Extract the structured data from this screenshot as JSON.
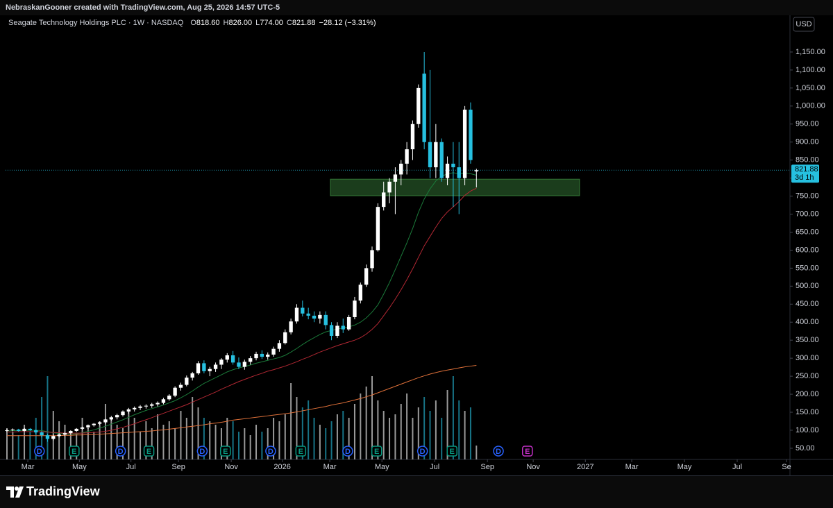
{
  "header": {
    "credit": "NebraskanGooner created with TradingView.com, Aug 25, 2026 14:57 UTC-5"
  },
  "footer": {
    "brand": "TradingView"
  },
  "chart_data": {
    "type": "candlestick",
    "title": "Seagate Technology Holdings PLC · 1W · NASDAQ",
    "ohlc_header": [
      {
        "key": "O",
        "value": "818.60"
      },
      {
        "key": "H",
        "value": "826.00"
      },
      {
        "key": "L",
        "value": "774.00"
      },
      {
        "key": "C",
        "value": "821.88"
      }
    ],
    "change_label": "−28.12 (−3.31%)",
    "currency": "USD",
    "last_price_label": "821.88",
    "countdown": "3d 1h",
    "up_color": "#ffffff",
    "down_color": "#26c0e0",
    "open": [
      98,
      100,
      102,
      98,
      104,
      100,
      94,
      86,
      76,
      84,
      88,
      92,
      98,
      104,
      108,
      114,
      118,
      122,
      130,
      136,
      142,
      152,
      158,
      162,
      166,
      168,
      172,
      176,
      186,
      196,
      218,
      226,
      246,
      258,
      286,
      264,
      270,
      282,
      296,
      308,
      288,
      276,
      290,
      300,
      312,
      304,
      310,
      326,
      342,
      372,
      402,
      440,
      424,
      418,
      410,
      420,
      392,
      362,
      390,
      380,
      414,
      460,
      504,
      550,
      600,
      720,
      760,
      790,
      810,
      840,
      880,
      950,
      1090,
      900,
      830,
      900,
      800,
      840,
      830,
      800,
      990,
      818.6
    ],
    "high": [
      104,
      105,
      104,
      106,
      106,
      102,
      96,
      90,
      88,
      92,
      94,
      100,
      106,
      110,
      116,
      120,
      124,
      132,
      140,
      146,
      155,
      162,
      166,
      170,
      172,
      176,
      180,
      190,
      200,
      222,
      232,
      252,
      262,
      292,
      294,
      276,
      288,
      300,
      314,
      320,
      302,
      296,
      306,
      318,
      322,
      316,
      332,
      350,
      380,
      410,
      450,
      460,
      440,
      430,
      430,
      430,
      400,
      400,
      410,
      420,
      470,
      510,
      560,
      610,
      730,
      790,
      800,
      830,
      850,
      900,
      960,
      1060,
      1150,
      1100,
      950,
      910,
      860,
      900,
      900,
      1000,
      1010,
      826
    ],
    "low": [
      95,
      97,
      96,
      96,
      98,
      90,
      80,
      68,
      72,
      80,
      84,
      88,
      95,
      100,
      104,
      110,
      114,
      118,
      126,
      130,
      138,
      146,
      152,
      156,
      160,
      162,
      166,
      172,
      182,
      192,
      210,
      222,
      238,
      254,
      258,
      250,
      262,
      270,
      288,
      282,
      270,
      268,
      282,
      294,
      298,
      296,
      304,
      318,
      338,
      366,
      396,
      416,
      408,
      400,
      396,
      380,
      350,
      356,
      370,
      376,
      408,
      452,
      498,
      540,
      596,
      710,
      730,
      700,
      780,
      810,
      850,
      940,
      880,
      800,
      800,
      790,
      780,
      720,
      700,
      780,
      840,
      774
    ],
    "close": [
      100,
      102,
      98,
      104,
      100,
      94,
      86,
      76,
      84,
      88,
      92,
      98,
      104,
      108,
      114,
      118,
      122,
      130,
      136,
      142,
      152,
      158,
      162,
      166,
      168,
      172,
      176,
      186,
      196,
      218,
      226,
      246,
      258,
      286,
      264,
      270,
      282,
      296,
      308,
      288,
      276,
      290,
      300,
      312,
      304,
      310,
      326,
      342,
      372,
      402,
      440,
      424,
      418,
      410,
      420,
      392,
      362,
      390,
      380,
      414,
      460,
      504,
      550,
      600,
      720,
      760,
      790,
      810,
      840,
      880,
      950,
      1050,
      900,
      830,
      900,
      800,
      840,
      830,
      800,
      990,
      850,
      821.88
    ],
    "volume": [
      45,
      40,
      35,
      50,
      40,
      60,
      90,
      120,
      70,
      55,
      50,
      40,
      38,
      60,
      45,
      40,
      55,
      80,
      60,
      50,
      45,
      70,
      60,
      40,
      55,
      45,
      65,
      50,
      55,
      45,
      70,
      60,
      90,
      75,
      60,
      55,
      50,
      45,
      60,
      55,
      40,
      45,
      35,
      50,
      40,
      45,
      60,
      55,
      65,
      110,
      90,
      75,
      85,
      60,
      50,
      45,
      55,
      65,
      70,
      60,
      80,
      95,
      105,
      120,
      85,
      70,
      60,
      65,
      80,
      95,
      60,
      75,
      90,
      70,
      85,
      60,
      100,
      120,
      85,
      70,
      75,
      20
    ],
    "moving_averages": [
      {
        "color": "#1b7a3a",
        "values": [
          98,
          99,
          99,
          100,
          100,
          100,
          99,
          96,
          93,
          91,
          90,
          89,
          90,
          93,
          97,
          101,
          106,
          111,
          117,
          123,
          129,
          136,
          143,
          149,
          155,
          160,
          165,
          170,
          176,
          182,
          190,
          199,
          209,
          220,
          230,
          238,
          246,
          254,
          262,
          268,
          273,
          277,
          281,
          286,
          290,
          294,
          298,
          302,
          308,
          317,
          327,
          338,
          348,
          357,
          366,
          373,
          377,
          381,
          384,
          387,
          392,
          400,
          412,
          428,
          448,
          478,
          510,
          546,
          583,
          620,
          660,
          705,
          742,
          770,
          792,
          805,
          812,
          815,
          812,
          815,
          812,
          808
        ]
      },
      {
        "color": "#b22833",
        "values": [
          95,
          95,
          96,
          96,
          96,
          96,
          96,
          95,
          94,
          93,
          92,
          92,
          92,
          92,
          93,
          94,
          95,
          97,
          100,
          104,
          108,
          113,
          118,
          124,
          129,
          135,
          141,
          147,
          153,
          159,
          165,
          171,
          178,
          185,
          192,
          199,
          206,
          214,
          221,
          228,
          235,
          241,
          247,
          253,
          258,
          264,
          268,
          273,
          278,
          284,
          290,
          297,
          303,
          310,
          317,
          323,
          329,
          335,
          340,
          345,
          350,
          357,
          367,
          380,
          396,
          418,
          440,
          464,
          490,
          518,
          548,
          580,
          612,
          638,
          664,
          688,
          706,
          720,
          735,
          752,
          764,
          772
        ]
      },
      {
        "color": "#e0713a",
        "values": [
          85,
          85,
          85,
          85,
          85,
          85,
          85,
          85,
          85,
          85,
          86,
          86,
          87,
          87,
          88,
          88,
          89,
          90,
          91,
          92,
          93,
          94,
          95,
          96,
          97,
          98,
          100,
          101,
          103,
          105,
          107,
          109,
          111,
          113,
          115,
          118,
          120,
          122,
          125,
          128,
          130,
          132,
          134,
          136,
          138,
          140,
          142,
          144,
          146,
          148,
          151,
          154,
          157,
          160,
          163,
          166,
          170,
          173,
          176,
          180,
          184,
          188,
          193,
          198,
          204,
          210,
          216,
          222,
          228,
          234,
          240,
          246,
          251,
          256,
          260,
          264,
          267,
          270,
          273,
          276,
          278,
          280
        ]
      }
    ],
    "zone": {
      "low": 751,
      "high": 797,
      "start": 55.8,
      "end": 98.8,
      "color": "#4caf50"
    },
    "events": [
      {
        "label": "D",
        "at": 5.6,
        "color": "#2962ff"
      },
      {
        "label": "E",
        "at": 11.6,
        "color": "#089981"
      },
      {
        "label": "D",
        "at": 19.6,
        "color": "#2962ff"
      },
      {
        "label": "E",
        "at": 24.5,
        "color": "#089981"
      },
      {
        "label": "D",
        "at": 33.7,
        "color": "#2962ff"
      },
      {
        "label": "E",
        "at": 37.7,
        "color": "#089981"
      },
      {
        "label": "D",
        "at": 45.5,
        "color": "#2962ff"
      },
      {
        "label": "E",
        "at": 50.7,
        "color": "#089981"
      },
      {
        "label": "D",
        "at": 58.8,
        "color": "#2962ff"
      },
      {
        "label": "E",
        "at": 63.8,
        "color": "#089981"
      },
      {
        "label": "D",
        "at": 71.7,
        "color": "#2962ff"
      },
      {
        "label": "E",
        "at": 76.8,
        "color": "#089981"
      },
      {
        "label": "D",
        "at": 84.8,
        "color": "#2962ff"
      },
      {
        "label": "E",
        "at": 89.8,
        "color": "#c530c9"
      }
    ],
    "xlim": [
      -0.24,
      135.1
    ],
    "xticks": [
      {
        "value": 3.6,
        "label": "Mar"
      },
      {
        "value": 12.5,
        "label": "May"
      },
      {
        "value": 21.4,
        "label": "Jul"
      },
      {
        "value": 29.6,
        "label": "Sep"
      },
      {
        "value": 38.7,
        "label": "Nov"
      },
      {
        "value": 47.5,
        "label": "2026"
      },
      {
        "value": 55.7,
        "label": "Mar"
      },
      {
        "value": 64.7,
        "label": "May"
      },
      {
        "value": 73.8,
        "label": "Jul"
      },
      {
        "value": 82.9,
        "label": "Sep"
      },
      {
        "value": 90.8,
        "label": "Nov"
      },
      {
        "value": 99.8,
        "label": "2027"
      },
      {
        "value": 107.8,
        "label": "Mar"
      },
      {
        "value": 116.9,
        "label": "May"
      },
      {
        "value": 126,
        "label": "Jul"
      },
      {
        "value": 134.5,
        "label": "Se"
      }
    ],
    "ylim": [
      19,
      1252
    ],
    "yticks": [
      {
        "value": 50,
        "label": "50.00"
      },
      {
        "value": 100,
        "label": "100.00"
      },
      {
        "value": 150,
        "label": "150.00"
      },
      {
        "value": 200,
        "label": "200.00"
      },
      {
        "value": 250,
        "label": "250.00"
      },
      {
        "value": 300,
        "label": "300.00"
      },
      {
        "value": 350,
        "label": "350.00"
      },
      {
        "value": 400,
        "label": "400.00"
      },
      {
        "value": 450,
        "label": "450.00"
      },
      {
        "value": 500,
        "label": "500.00"
      },
      {
        "value": 550,
        "label": "550.00"
      },
      {
        "value": 600,
        "label": "600.00"
      },
      {
        "value": 650,
        "label": "650.00"
      },
      {
        "value": 700,
        "label": "700.00"
      },
      {
        "value": 750,
        "label": "750.00"
      },
      {
        "value": 800,
        "label": "800.00"
      },
      {
        "value": 850,
        "label": "850.00"
      },
      {
        "value": 900,
        "label": "900.00"
      },
      {
        "value": 950,
        "label": "950.00"
      },
      {
        "value": 1000,
        "label": "1,000.00"
      },
      {
        "value": 1050,
        "label": "1,050.00"
      },
      {
        "value": 1100,
        "label": "1,100.00"
      },
      {
        "value": 1150,
        "label": "1,150.00"
      }
    ]
  }
}
